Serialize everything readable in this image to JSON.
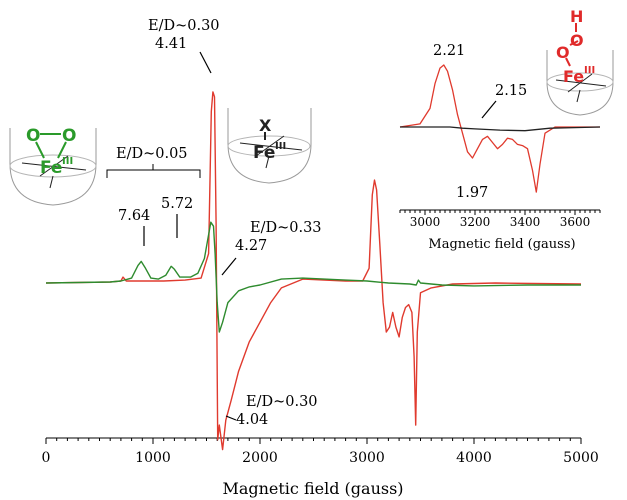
{
  "colors": {
    "red": "#e03a2e",
    "green": "#2e8b2e",
    "black": "#222222",
    "fe_green": "#2a9a2a",
    "fe_red": "#e02a2a"
  },
  "chart_data": [
    {
      "type": "line",
      "xlabel": "Magnetic field (gauss)",
      "xlim": [
        0,
        5000
      ],
      "xticks": [
        "0",
        "1000",
        "2000",
        "3000",
        "4000",
        "5000"
      ],
      "series": [
        {
          "color": "red",
          "points": [
            [
              0,
              0
            ],
            [
              600,
              0.01
            ],
            [
              700,
              0.02
            ],
            [
              720,
              0.06
            ],
            [
              750,
              0.02
            ],
            [
              900,
              0.02
            ],
            [
              1100,
              0.02
            ],
            [
              1300,
              0.03
            ],
            [
              1450,
              0.05
            ],
            [
              1520,
              0.3
            ],
            [
              1545,
              1.75
            ],
            [
              1560,
              1.95
            ],
            [
              1575,
              1.9
            ],
            [
              1590,
              0.6
            ],
            [
              1605,
              -1.6
            ],
            [
              1620,
              -1.45
            ],
            [
              1650,
              -1.7
            ],
            [
              1680,
              -1.4
            ],
            [
              1730,
              -1.2
            ],
            [
              1800,
              -0.9
            ],
            [
              1900,
              -0.6
            ],
            [
              2000,
              -0.4
            ],
            [
              2100,
              -0.2
            ],
            [
              2200,
              -0.05
            ],
            [
              2400,
              0.04
            ],
            [
              2600,
              0.03
            ],
            [
              2800,
              0.02
            ],
            [
              2960,
              0.02
            ],
            [
              3020,
              0.15
            ],
            [
              3050,
              0.9
            ],
            [
              3070,
              1.05
            ],
            [
              3090,
              0.95
            ],
            [
              3120,
              0.4
            ],
            [
              3150,
              -0.2
            ],
            [
              3180,
              -0.5
            ],
            [
              3210,
              -0.45
            ],
            [
              3240,
              -0.3
            ],
            [
              3270,
              -0.45
            ],
            [
              3300,
              -0.55
            ],
            [
              3330,
              -0.35
            ],
            [
              3360,
              -0.25
            ],
            [
              3390,
              -0.22
            ],
            [
              3420,
              -0.3
            ],
            [
              3440,
              -0.75
            ],
            [
              3455,
              -1.45
            ],
            [
              3470,
              -0.5
            ],
            [
              3500,
              -0.1
            ],
            [
              3600,
              -0.05
            ],
            [
              3800,
              -0.01
            ],
            [
              4200,
              0
            ],
            [
              5000,
              -0.01
            ]
          ]
        },
        {
          "color": "green",
          "points": [
            [
              0,
              0
            ],
            [
              600,
              0.01
            ],
            [
              700,
              0.02
            ],
            [
              800,
              0.05
            ],
            [
              860,
              0.18
            ],
            [
              890,
              0.22
            ],
            [
              930,
              0.15
            ],
            [
              980,
              0.05
            ],
            [
              1050,
              0.04
            ],
            [
              1120,
              0.08
            ],
            [
              1170,
              0.17
            ],
            [
              1200,
              0.14
            ],
            [
              1250,
              0.06
            ],
            [
              1350,
              0.06
            ],
            [
              1420,
              0.1
            ],
            [
              1480,
              0.25
            ],
            [
              1540,
              0.62
            ],
            [
              1565,
              0.58
            ],
            [
              1580,
              0.3
            ],
            [
              1600,
              -0.2
            ],
            [
              1620,
              -0.5
            ],
            [
              1650,
              -0.4
            ],
            [
              1700,
              -0.2
            ],
            [
              1800,
              -0.08
            ],
            [
              1900,
              -0.04
            ],
            [
              2000,
              -0.02
            ],
            [
              2200,
              0.04
            ],
            [
              2400,
              0.05
            ],
            [
              2600,
              0.04
            ],
            [
              2800,
              0.03
            ],
            [
              3000,
              0.02
            ],
            [
              3200,
              0.0
            ],
            [
              3400,
              -0.01
            ],
            [
              3460,
              -0.02
            ],
            [
              3480,
              0.03
            ],
            [
              3500,
              0
            ],
            [
              3700,
              -0.02
            ],
            [
              4000,
              -0.03
            ],
            [
              4500,
              -0.02
            ],
            [
              5000,
              -0.02
            ]
          ]
        }
      ]
    },
    {
      "type": "line",
      "xlabel": "Magnetic field (gauss)",
      "xlim": [
        2900,
        3700
      ],
      "xticks": [
        "3000",
        "3200",
        "3400",
        "3600"
      ],
      "series": [
        {
          "color": "red",
          "points": [
            [
              2900,
              0
            ],
            [
              2980,
              0.05
            ],
            [
              3020,
              0.3
            ],
            [
              3040,
              0.7
            ],
            [
              3060,
              0.95
            ],
            [
              3075,
              1.0
            ],
            [
              3090,
              0.9
            ],
            [
              3110,
              0.6
            ],
            [
              3130,
              0.2
            ],
            [
              3150,
              -0.1
            ],
            [
              3170,
              -0.4
            ],
            [
              3190,
              -0.5
            ],
            [
              3210,
              -0.35
            ],
            [
              3230,
              -0.2
            ],
            [
              3250,
              -0.15
            ],
            [
              3270,
              -0.25
            ],
            [
              3290,
              -0.35
            ],
            [
              3310,
              -0.28
            ],
            [
              3330,
              -0.18
            ],
            [
              3350,
              -0.2
            ],
            [
              3370,
              -0.28
            ],
            [
              3390,
              -0.3
            ],
            [
              3410,
              -0.35
            ],
            [
              3430,
              -0.7
            ],
            [
              3445,
              -1.05
            ],
            [
              3460,
              -0.6
            ],
            [
              3480,
              -0.1
            ],
            [
              3520,
              0
            ],
            [
              3600,
              0
            ],
            [
              3700,
              0
            ]
          ]
        },
        {
          "color": "black",
          "points": [
            [
              2900,
              0
            ],
            [
              3100,
              0
            ],
            [
              3150,
              -0.02
            ],
            [
              3200,
              -0.03
            ],
            [
              3300,
              -0.05
            ],
            [
              3400,
              -0.06
            ],
            [
              3500,
              -0.02
            ],
            [
              3600,
              -0.01
            ],
            [
              3700,
              0
            ]
          ]
        }
      ]
    }
  ],
  "annotations": {
    "ed_030_top": "E/D~0.30",
    "g_441": "4.41",
    "ed_005": "E/D~0.05",
    "g_764": "7.64",
    "g_572": "5.72",
    "ed_033": "E/D~0.33",
    "g_427": "4.27",
    "ed_030_bottom": "E/D~0.30",
    "g_404": "4.04",
    "g_221": "2.21",
    "g_215": "2.15",
    "g_197": "1.97"
  },
  "structures": {
    "peroxo": {
      "o_left": "O",
      "o_right": "O",
      "fe": "Fe",
      "ox": "III"
    },
    "generic": {
      "x": "X",
      "fe": "Fe",
      "ox": "III"
    },
    "hydroperoxo": {
      "h": "H",
      "o_top": "O",
      "o_bottom": "O",
      "fe": "Fe",
      "ox": "III"
    }
  }
}
